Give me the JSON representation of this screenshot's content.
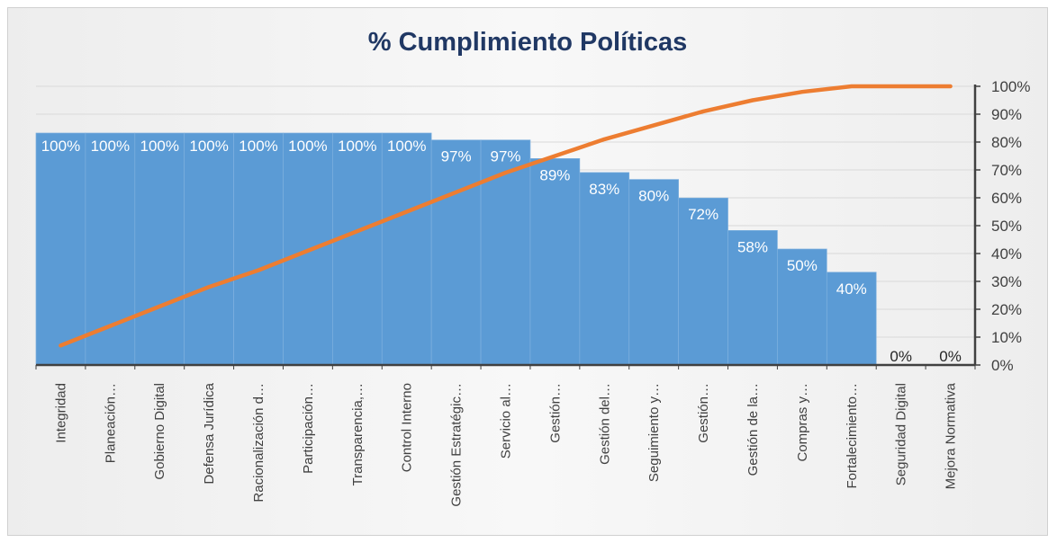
{
  "chart_data": {
    "type": "bar",
    "title": "% Cumplimiento Políticas",
    "categories": [
      "Integridad",
      "Planeación…",
      "Gobierno Digital",
      "Defensa Jurídica",
      "Racionalización d…",
      "Participación…",
      "Transparencia,…",
      "Control Interno",
      "Gestión Estratégic…",
      "Servicio al…",
      "Gestión…",
      "Gestión del…",
      "Seguimiento y…",
      "Gestión…",
      "Gestión de la…",
      "Compras y…",
      "Fortalecimiento…",
      "Seguridad Digital",
      "Mejora Normativa"
    ],
    "series": [
      {
        "type": "bar",
        "values": [
          100,
          100,
          100,
          100,
          100,
          100,
          100,
          100,
          97,
          97,
          89,
          83,
          80,
          72,
          58,
          50,
          40,
          0,
          0
        ],
        "labels": [
          "100%",
          "100%",
          "100%",
          "100%",
          "100%",
          "100%",
          "100%",
          "100%",
          "97%",
          "97%",
          "89%",
          "83%",
          "80%",
          "72%",
          "58%",
          "50%",
          "40%",
          "0%",
          "0%"
        ],
        "ylim": [
          0,
          125
        ],
        "color": "#5B9BD5"
      },
      {
        "type": "line",
        "values": [
          7,
          14,
          21,
          28,
          34,
          41,
          48,
          55,
          62,
          69,
          75,
          81,
          86,
          91,
          95,
          98,
          100,
          100,
          100
        ],
        "ylim": [
          0,
          100
        ],
        "color": "#ED7D31"
      }
    ],
    "y2_ticks": [
      "0%",
      "10%",
      "20%",
      "30%",
      "40%",
      "50%",
      "60%",
      "70%",
      "80%",
      "90%",
      "100%"
    ],
    "grid": true,
    "legend": "none"
  }
}
